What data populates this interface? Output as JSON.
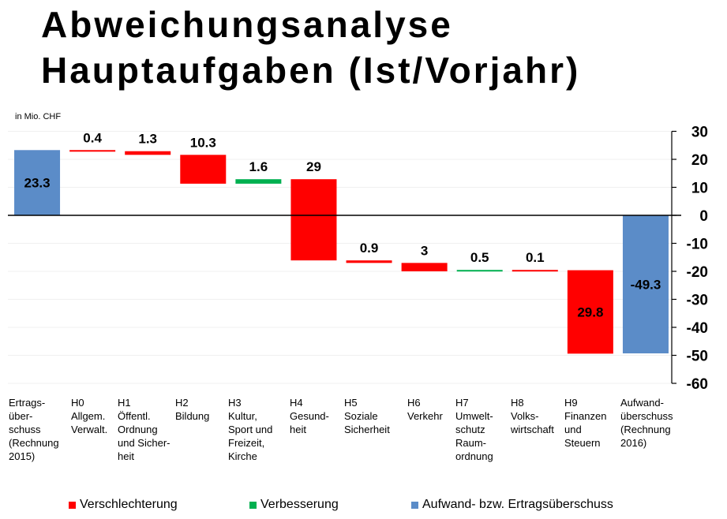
{
  "title_line1": "Abweichungsanalyse",
  "title_line2": "Hauptaufgaben (Ist/Vorjahr)",
  "unit_label": "in Mio. CHF",
  "colors": {
    "worse": "#ff0000",
    "better": "#00b050",
    "total": "#5b8cc8"
  },
  "legend": [
    {
      "label": "Verschlechterung",
      "color": "#ff0000"
    },
    {
      "label": "Verbesserung",
      "color": "#00b050"
    },
    {
      "label": "Aufwand- bzw. Ertragsüberschuss",
      "color": "#5b8cc8"
    }
  ],
  "chart_data": {
    "type": "bar",
    "subtype": "waterfall",
    "title": "Abweichungsanalyse Hauptaufgaben (Ist/Vorjahr)",
    "ylabel": "in Mio. CHF",
    "ylim": [
      -60,
      30
    ],
    "yticks": [
      30,
      20,
      10,
      0,
      -10,
      -20,
      -30,
      -40,
      -50,
      -60
    ],
    "y_axis_position": "right",
    "grid": true,
    "legend_position": "bottom",
    "categories": [
      "Ertrags-\nüber-\nschuss\n(Rechnung\n2015)",
      "H0\nAllgem.\nVerwalt.",
      "H1\nÖffentl.\nOrdnung\nund Sicher-\nheit",
      "H2\nBildung",
      "H3\nKultur,\nSport und\nFreizeit,\nKirche",
      "H4\nGesund-\nheit",
      "H5\nSoziale\nSicherheit",
      "H6\nVerkehr",
      "H7\nUmwelt-\nschutz\nRaum-\nordnung",
      "H8\nVolks-\nwirtschaft",
      "H9\nFinanzen\nund\nSteuern",
      "Aufwand-\nüberschuss\n(Rechnung\n2016)"
    ],
    "bars": [
      {
        "start": 0,
        "end": 23.3,
        "label": "23.3",
        "kind": "total"
      },
      {
        "start": 23.3,
        "end": 22.9,
        "label": "0.4",
        "kind": "worse"
      },
      {
        "start": 22.9,
        "end": 21.6,
        "label": "1.3",
        "kind": "worse"
      },
      {
        "start": 21.6,
        "end": 11.3,
        "label": "10.3",
        "kind": "worse"
      },
      {
        "start": 11.3,
        "end": 12.9,
        "label": "1.6",
        "kind": "better"
      },
      {
        "start": 12.9,
        "end": -16.1,
        "label": "29",
        "kind": "worse"
      },
      {
        "start": -16.1,
        "end": -17.0,
        "label": "0.9",
        "kind": "worse"
      },
      {
        "start": -17.0,
        "end": -20.0,
        "label": "3",
        "kind": "worse"
      },
      {
        "start": -20.0,
        "end": -19.5,
        "label": "0.5",
        "kind": "better"
      },
      {
        "start": -19.5,
        "end": -19.6,
        "label": "0.1",
        "kind": "worse"
      },
      {
        "start": -19.6,
        "end": -49.4,
        "label": "29.8",
        "kind": "worse"
      },
      {
        "start": 0,
        "end": -49.3,
        "label": "-49.3",
        "kind": "total"
      }
    ]
  }
}
